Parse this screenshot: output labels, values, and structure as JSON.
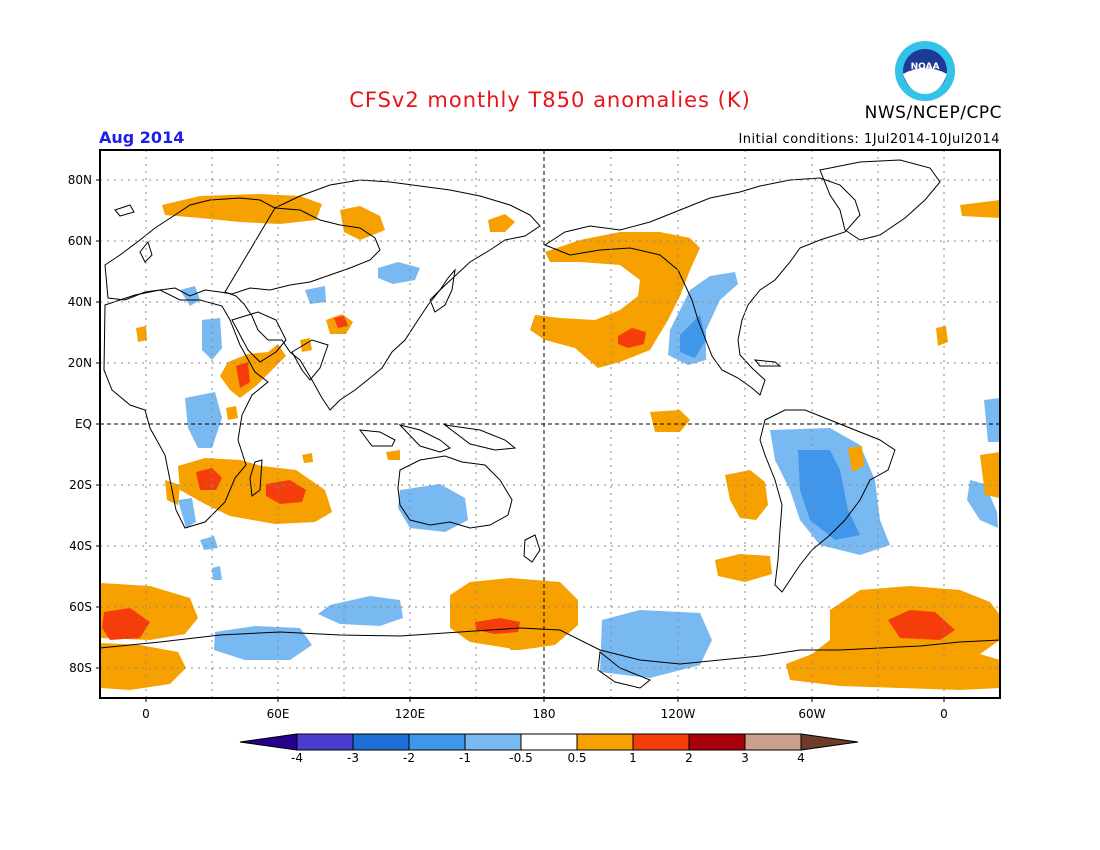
{
  "header": {
    "title": "CFSv2 monthly T850 anomalies (K)",
    "agency": "NWS/NCEP/CPC",
    "logo_text": "NOAA",
    "valid_month": "Aug 2014",
    "initial_conditions": "Initial conditions: 1Jul2014-10Jul2014"
  },
  "map": {
    "lat_labels": [
      "80N",
      "60N",
      "40N",
      "20N",
      "EQ",
      "20S",
      "40S",
      "60S",
      "80S"
    ],
    "lon_labels": [
      "0",
      "60E",
      "120E",
      "180",
      "120W",
      "60W",
      "0"
    ],
    "grid": true
  },
  "colorbar": {
    "labels": [
      "-4",
      "-3",
      "-2",
      "-1",
      "-0.5",
      "0.5",
      "1",
      "2",
      "3",
      "4"
    ],
    "colors": [
      "#26008c",
      "#4a3ccc",
      "#1e6ed8",
      "#3f96ea",
      "#78b9f2",
      "#ffffff",
      "#f7a100",
      "#f53d0c",
      "#a8000a",
      "#c9a08e",
      "#6b3d2a"
    ]
  }
}
